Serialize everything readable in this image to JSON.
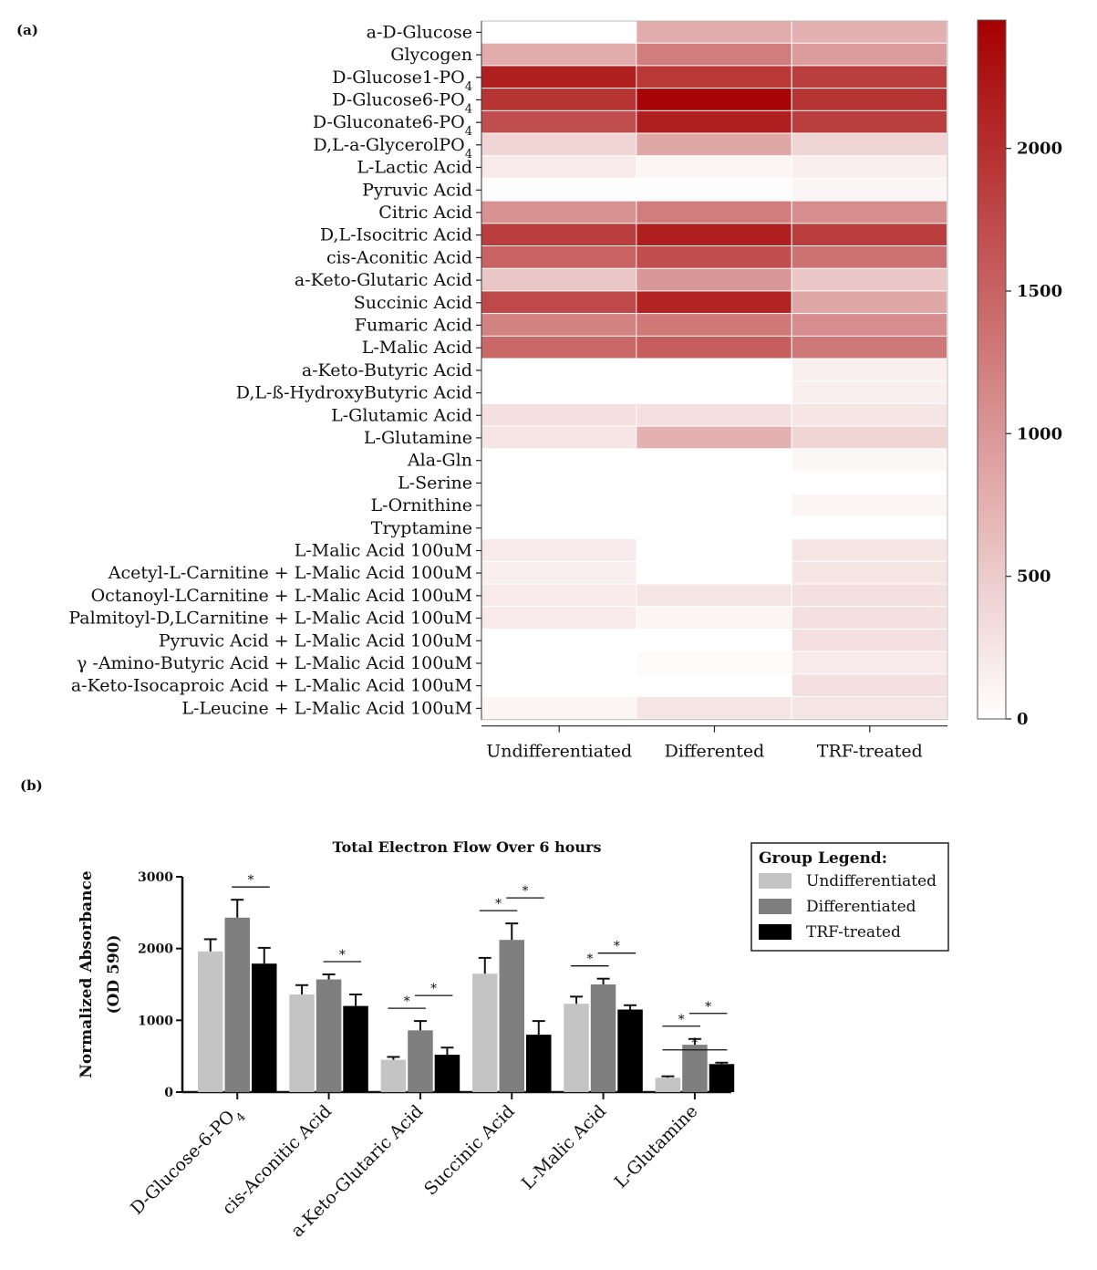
{
  "chart_data": [
    {
      "type": "heatmap",
      "panel_label": "(a)",
      "columns": [
        "Undifferentiated",
        "Differented",
        "TRF-treated"
      ],
      "rows": [
        {
          "label": "a-D-Glucose",
          "values": [
            0,
            800,
            750
          ]
        },
        {
          "label": "Glycogen",
          "values": [
            800,
            1250,
            950
          ]
        },
        {
          "label": "D-Glucose1-PO4",
          "values": [
            2150,
            1900,
            1850
          ]
        },
        {
          "label": "D-Glucose6-PO4",
          "values": [
            1950,
            2400,
            1950
          ]
        },
        {
          "label": "D-Gluconate6-PO4",
          "values": [
            1700,
            2150,
            1850
          ]
        },
        {
          "label": "D,L-a-GlycerolPO4",
          "values": [
            400,
            850,
            400
          ]
        },
        {
          "label": "L-Lactic Acid",
          "values": [
            200,
            100,
            150
          ]
        },
        {
          "label": "Pyruvic Acid",
          "values": [
            20,
            20,
            100
          ]
        },
        {
          "label": "Citric Acid",
          "values": [
            1050,
            1250,
            1100
          ]
        },
        {
          "label": "D,L-Isocitric Acid",
          "values": [
            1850,
            2150,
            1850
          ]
        },
        {
          "label": "cis-Aconitic Acid",
          "values": [
            1500,
            1700,
            1350
          ]
        },
        {
          "label": "a-Keto-Glutaric Acid",
          "values": [
            550,
            1000,
            550
          ]
        },
        {
          "label": "Succinic Acid",
          "values": [
            1750,
            2100,
            850
          ]
        },
        {
          "label": "Fumaric Acid",
          "values": [
            1200,
            1300,
            1100
          ]
        },
        {
          "label": "L-Malic Acid",
          "values": [
            1450,
            1550,
            1300
          ]
        },
        {
          "label": "a-Keto-Butyric Acid",
          "values": [
            0,
            0,
            150
          ]
        },
        {
          "label": "D,L-ß-HydroxyButyric Acid",
          "values": [
            0,
            0,
            150
          ]
        },
        {
          "label": "L-Glutamic Acid",
          "values": [
            300,
            300,
            250
          ]
        },
        {
          "label": "L-Glutamine",
          "values": [
            250,
            750,
            400
          ]
        },
        {
          "label": "Ala-Gln",
          "values": [
            0,
            0,
            80
          ]
        },
        {
          "label": "L-Serine",
          "values": [
            0,
            0,
            0
          ]
        },
        {
          "label": "L-Ornithine",
          "values": [
            0,
            0,
            100
          ]
        },
        {
          "label": "Tryptamine",
          "values": [
            0,
            0,
            0
          ]
        },
        {
          "label": "L-Malic Acid 100uM",
          "values": [
            200,
            0,
            250
          ]
        },
        {
          "label": "Acetyl-L-Carnitine + L-Malic Acid 100uM",
          "values": [
            150,
            0,
            250
          ]
        },
        {
          "label": "Octanoyl-LCarnitine + L-Malic Acid 100uM",
          "values": [
            200,
            250,
            300
          ]
        },
        {
          "label": "Palmitoyl-D,LCarnitine + L-Malic Acid 100uM",
          "values": [
            200,
            100,
            300
          ]
        },
        {
          "label": "Pyruvic Acid + L-Malic Acid 100uM",
          "values": [
            0,
            0,
            300
          ]
        },
        {
          "label": "γ -Amino-Butyric Acid + L-Malic Acid 100uM",
          "values": [
            0,
            50,
            200
          ]
        },
        {
          "label": "a-Keto-Isocaproic Acid + L-Malic Acid 100uM",
          "values": [
            0,
            0,
            300
          ]
        },
        {
          "label": "L-Leucine + L-Malic Acid 100uM",
          "values": [
            100,
            250,
            250
          ]
        }
      ],
      "colorbar": {
        "min": 0,
        "max": 2450,
        "ticks": [
          "0",
          "500",
          "1000",
          "1500",
          "2000"
        ],
        "low_color": "#ffffff",
        "high_color": "#a50000"
      }
    },
    {
      "type": "bar",
      "panel_label": "(b)",
      "title": "Total Electron Flow Over 6 hours",
      "ylabel_line1": "Normalized Absorbance",
      "ylabel_line2": "(OD 590)",
      "ylim": [
        0,
        3000
      ],
      "yticks": [
        "0",
        "1000",
        "2000",
        "3000"
      ],
      "categories": [
        "D-Glucose-6-PO4",
        "cis-Aconitic Acid",
        "a-Keto-Glutaric Acid",
        "Succinic Acid",
        "L-Malic Acid",
        "L-Glutamine"
      ],
      "series": [
        {
          "name": "Undifferentiated",
          "color": "#c4c4c4",
          "values": [
            1960,
            1360,
            450,
            1650,
            1230,
            200
          ],
          "errors": [
            170,
            130,
            40,
            220,
            100,
            20
          ]
        },
        {
          "name": "Differentiated",
          "color": "#7f7f7f",
          "values": [
            2430,
            1570,
            860,
            2120,
            1500,
            660
          ],
          "errors": [
            250,
            70,
            130,
            230,
            80,
            80
          ]
        },
        {
          "name": "TRF-treated",
          "color": "#000000",
          "values": [
            1790,
            1200,
            520,
            800,
            1150,
            390
          ],
          "errors": [
            220,
            160,
            100,
            190,
            60,
            20
          ]
        }
      ],
      "legend": {
        "title": "Group Legend:",
        "position": "top-right"
      },
      "significance": [
        {
          "category": 0,
          "from": 1,
          "to": 2,
          "label": "*"
        },
        {
          "category": 1,
          "from": 1,
          "to": 2,
          "label": "*"
        },
        {
          "category": 2,
          "from": 0,
          "to": 1,
          "label": "*"
        },
        {
          "category": 2,
          "from": 1,
          "to": 2,
          "label": "*"
        },
        {
          "category": 3,
          "from": 0,
          "to": 1,
          "label": "*"
        },
        {
          "category": 3,
          "from": 1,
          "to": 2,
          "label": "*"
        },
        {
          "category": 4,
          "from": 0,
          "to": 1,
          "label": "*"
        },
        {
          "category": 4,
          "from": 1,
          "to": 2,
          "label": "*"
        },
        {
          "category": 5,
          "from": 0,
          "to": 1,
          "label": "*"
        },
        {
          "category": 5,
          "from": 0,
          "to": 2,
          "label": "*"
        },
        {
          "category": 5,
          "from": 1,
          "to": 2,
          "label": "*"
        }
      ]
    }
  ]
}
